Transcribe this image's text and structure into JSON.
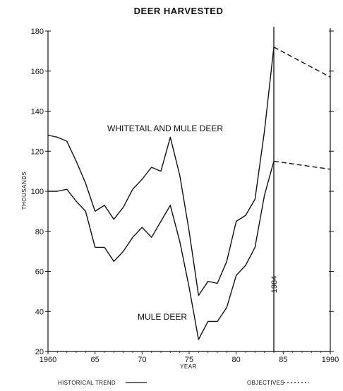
{
  "chart_data": {
    "type": "line",
    "title": "DEER HARVESTED",
    "xlabel": "YEAR",
    "ylabel": "THOUSANDS",
    "xlim": [
      1960,
      1990
    ],
    "ylim": [
      20,
      180
    ],
    "x_tick_labels": [
      "1960",
      "65",
      "70",
      "75",
      "80",
      "85",
      "1990"
    ],
    "x_tick_values": [
      1960,
      1965,
      1970,
      1975,
      1980,
      1985,
      1990
    ],
    "y_tick_values": [
      20,
      40,
      60,
      80,
      100,
      120,
      140,
      160,
      180
    ],
    "y_tick_labels": [
      "20",
      "40",
      "60",
      "80",
      "100",
      "120",
      "140",
      "160",
      "180"
    ],
    "marker_year": 1984,
    "marker_label": "1984",
    "series": [
      {
        "name": "WHITETAIL AND MULE DEER",
        "style": "historical",
        "x": [
          1960,
          1961,
          1962,
          1963,
          1964,
          1965,
          1966,
          1967,
          1968,
          1969,
          1970,
          1971,
          1972,
          1973,
          1974,
          1975,
          1976,
          1977,
          1978,
          1979,
          1980,
          1981,
          1982,
          1983,
          1984
        ],
        "values": [
          128,
          127,
          125,
          115,
          104,
          90,
          93,
          86,
          92,
          101,
          106,
          112,
          110,
          127,
          108,
          80,
          48,
          55,
          54,
          65,
          85,
          88,
          96,
          130,
          172
        ]
      },
      {
        "name": "MULE DEER",
        "style": "historical",
        "x": [
          1960,
          1961,
          1962,
          1963,
          1964,
          1965,
          1966,
          1967,
          1968,
          1969,
          1970,
          1971,
          1972,
          1973,
          1974,
          1975,
          1976,
          1977,
          1978,
          1979,
          1980,
          1981,
          1982,
          1983,
          1984
        ],
        "values": [
          100,
          100,
          101,
          95,
          90,
          72,
          72,
          65,
          70,
          77,
          82,
          77,
          85,
          93,
          75,
          52,
          26,
          35,
          35,
          42,
          58,
          63,
          72,
          98,
          115
        ]
      },
      {
        "name": "",
        "style": "objective",
        "x": [
          1984,
          1990
        ],
        "values": [
          172,
          157
        ]
      },
      {
        "name": "",
        "style": "objective",
        "x": [
          1984,
          1990
        ],
        "values": [
          115,
          111
        ]
      }
    ],
    "legend": [
      {
        "label": "HISTORICAL TREND",
        "style": "solid"
      },
      {
        "label": "OBJECTIVES",
        "style": "dashed"
      }
    ],
    "legend_position": "bottom",
    "grid": false
  }
}
